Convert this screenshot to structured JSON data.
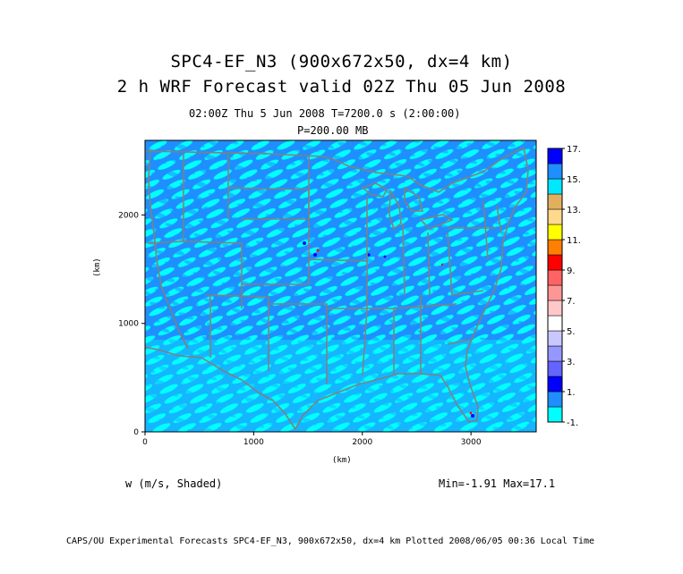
{
  "title": {
    "line1": "SPC4-EF_N3 (900x672x50, dx=4 km)",
    "line2": "2 h WRF Forecast valid 02Z Thu 05 Jun 2008"
  },
  "subtitle": {
    "time": "02:00Z Thu  5 Jun 2008    T=7200.0 s (2:00:00)",
    "pressure": "P=200.00 MB"
  },
  "axes": {
    "x_unit": "(km)",
    "y_unit": "(km)",
    "x_ticks": [
      {
        "value": 0,
        "label": "0"
      },
      {
        "value": 1000,
        "label": "1000"
      },
      {
        "value": 2000,
        "label": "2000"
      },
      {
        "value": 3000,
        "label": "3000"
      }
    ],
    "y_ticks": [
      {
        "value": 0,
        "label": "0"
      },
      {
        "value": 1000,
        "label": "1000"
      },
      {
        "value": 2000,
        "label": "2000"
      }
    ],
    "x_range": [
      0,
      3600
    ],
    "y_range": [
      0,
      2688
    ]
  },
  "field": {
    "variable_label": "w (m/s, Shaded)",
    "min_max": "Min=-1.91 Max=17.1"
  },
  "colorbar": {
    "colors": [
      "#00ffff",
      "#1f8fff",
      "#0000ff",
      "#6464ff",
      "#9696ff",
      "#c8c8ff",
      "#ffffff",
      "#ffc8c8",
      "#ff9696",
      "#ff6464",
      "#ff0000",
      "#ff7f00",
      "#ffff00",
      "#ffd98c",
      "#e0b060",
      "#00e8ff",
      "#1f8fff",
      "#0000ff"
    ],
    "labels": [
      "-1.",
      "1.",
      "3.",
      "5.",
      "7.",
      "9.",
      "11.",
      "13.",
      "15.",
      "17."
    ]
  },
  "colors": {
    "background_field": "#1f8fff",
    "light_field": "#00ffff",
    "boundaries": "#808080"
  },
  "footer": "CAPS/OU Experimental Forecasts  SPC4-EF_N3, 900x672x50, dx=4 km  Plotted 2008/06/05 00:36 Local Time"
}
